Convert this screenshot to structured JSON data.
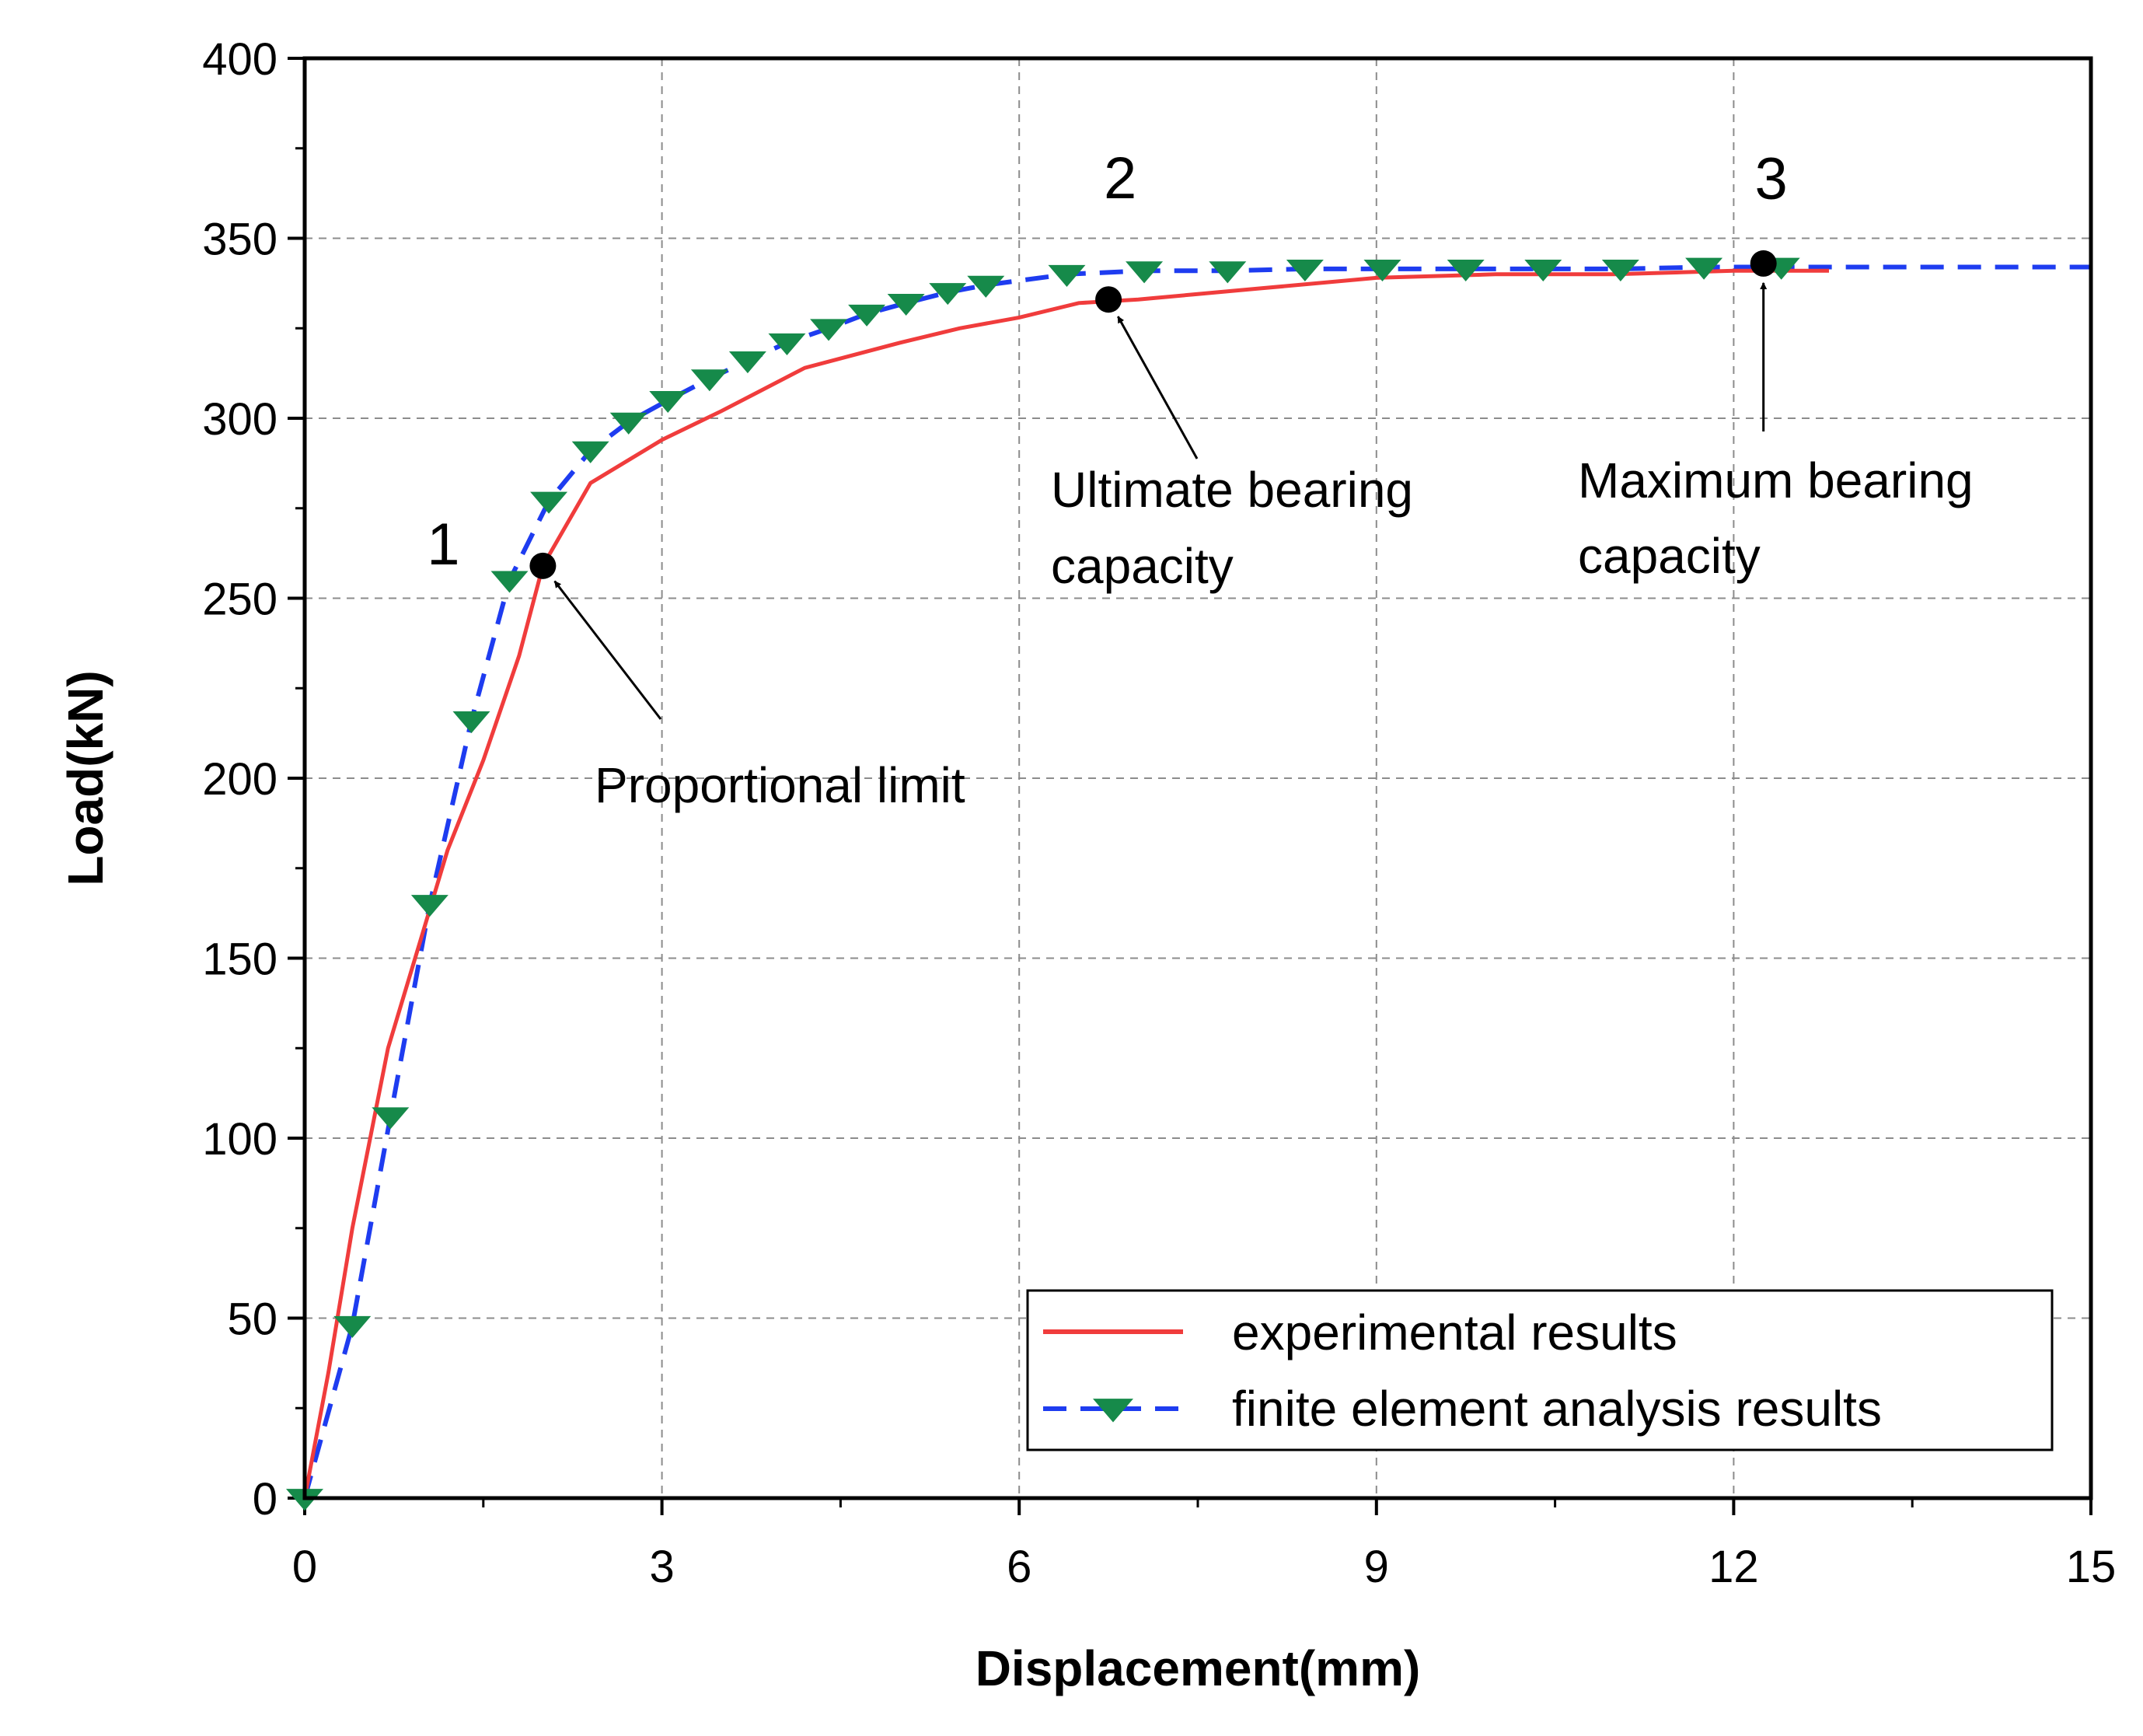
{
  "chart_data": {
    "type": "line",
    "title": "",
    "xlabel": "Displacement(mm)",
    "ylabel": "Load(kN)",
    "xlim": [
      0,
      15
    ],
    "ylim": [
      0,
      400
    ],
    "xticks": [
      0,
      3,
      6,
      9,
      12,
      15
    ],
    "yticks": [
      0,
      50,
      100,
      150,
      200,
      250,
      300,
      350,
      400
    ],
    "grid": true,
    "legend_position": "bottom-right",
    "colors": {
      "experimental": "#f03c3c",
      "fea_line": "#1e3cf0",
      "fea_marker": "#168a4a",
      "points": "#000000"
    },
    "series": [
      {
        "name": "experimental results",
        "style": "solid-line",
        "x": [
          0,
          0.2,
          0.4,
          0.7,
          1.0,
          1.2,
          1.5,
          1.8,
          2.0,
          2.4,
          3.0,
          3.5,
          4.2,
          5.0,
          5.5,
          6.0,
          6.5,
          7.0,
          8.0,
          9.0,
          10.0,
          11.0,
          12.0,
          12.8
        ],
        "y": [
          0,
          35,
          75,
          125,
          158,
          180,
          205,
          234,
          259,
          282,
          294,
          302,
          314,
          321,
          325,
          328,
          332,
          333,
          336,
          339,
          340,
          340,
          341,
          341
        ]
      },
      {
        "name": "finite element analysis results",
        "style": "dashed-line-with-triangle-markers",
        "x": [
          0,
          0.4,
          0.72,
          1.05,
          1.4,
          1.72,
          2.05,
          2.4,
          2.72,
          3.05,
          3.4,
          3.72,
          4.05,
          4.4,
          4.72,
          5.05,
          5.4,
          5.72,
          6.4,
          7.05,
          7.75,
          8.4,
          9.05,
          9.75,
          10.4,
          11.05,
          11.75,
          12.4,
          15.0
        ],
        "y": [
          0,
          48,
          106,
          165,
          216,
          255,
          277,
          291,
          299,
          305,
          311,
          316,
          321,
          325,
          329,
          332,
          335,
          337,
          340,
          341,
          341,
          341.5,
          341.5,
          341.5,
          341.5,
          341.5,
          342,
          342,
          342
        ]
      }
    ],
    "points": [
      {
        "label": "1",
        "x": 2.0,
        "y": 259,
        "annotation": "Proportional limit"
      },
      {
        "label": "2",
        "x": 6.75,
        "y": 333,
        "annotation": "Ultimate bearing capacity"
      },
      {
        "label": "3",
        "x": 12.25,
        "y": 343,
        "annotation": "Maximum bearing capacity"
      }
    ],
    "annotations": {
      "proportional": "Proportional limit",
      "ultimate_1": "Ultimate bearing",
      "ultimate_2": "capacity",
      "maximum_1": "Maximum bearing",
      "maximum_2": "capacity"
    }
  }
}
